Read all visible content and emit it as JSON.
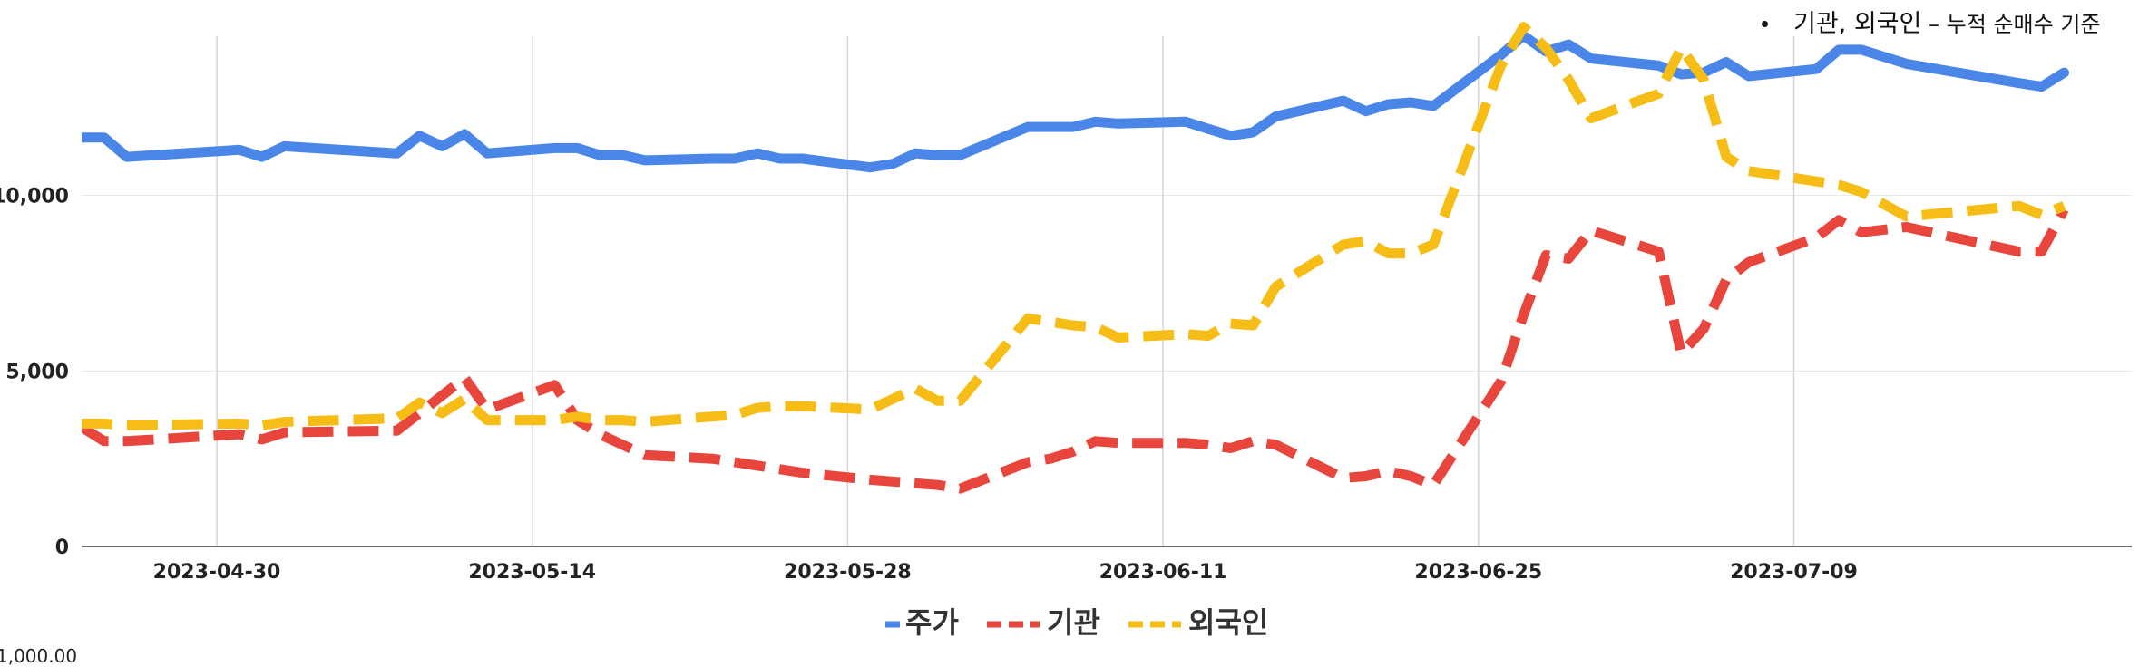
{
  "note": {
    "main": "기관, 외국인",
    "dash": "–",
    "detail": "누적 순매수 기준"
  },
  "bottom_stub": "1,000.00",
  "colors": {
    "price": "#4a86e8",
    "institution": "#e8453c",
    "foreign": "#f6bd16"
  },
  "chart_data": {
    "type": "line",
    "x_range": [
      "2023-04-24",
      "2023-07-24"
    ],
    "ylim": [
      0,
      15000
    ],
    "yticks": [
      0,
      5000,
      10000
    ],
    "ytick_labels": [
      "0",
      "5,000",
      "10,000"
    ],
    "xticks": [
      "2023-04-30",
      "2023-05-14",
      "2023-05-28",
      "2023-06-11",
      "2023-06-25",
      "2023-07-09"
    ],
    "grid": true,
    "legend_position": "bottom",
    "series": [
      {
        "name": "주가",
        "color": "#4a86e8",
        "style": "solid",
        "points": [
          [
            "2023-04-24",
            11650
          ],
          [
            "2023-04-25",
            11650
          ],
          [
            "2023-04-26",
            11100
          ],
          [
            "2023-05-01",
            11300
          ],
          [
            "2023-05-02",
            11100
          ],
          [
            "2023-05-03",
            11400
          ],
          [
            "2023-05-08",
            11200
          ],
          [
            "2023-05-09",
            11700
          ],
          [
            "2023-05-10",
            11400
          ],
          [
            "2023-05-11",
            11750
          ],
          [
            "2023-05-12",
            11200
          ],
          [
            "2023-05-15",
            11350
          ],
          [
            "2023-05-16",
            11350
          ],
          [
            "2023-05-17",
            11150
          ],
          [
            "2023-05-18",
            11150
          ],
          [
            "2023-05-19",
            11000
          ],
          [
            "2023-05-22",
            11050
          ],
          [
            "2023-05-23",
            11050
          ],
          [
            "2023-05-24",
            11200
          ],
          [
            "2023-05-25",
            11050
          ],
          [
            "2023-05-26",
            11050
          ],
          [
            "2023-05-29",
            10800
          ],
          [
            "2023-05-30",
            10900
          ],
          [
            "2023-05-31",
            11200
          ],
          [
            "2023-06-01",
            11150
          ],
          [
            "2023-06-02",
            11150
          ],
          [
            "2023-06-05",
            11950
          ],
          [
            "2023-06-06",
            11950
          ],
          [
            "2023-06-07",
            11950
          ],
          [
            "2023-06-08",
            12100
          ],
          [
            "2023-06-09",
            12050
          ],
          [
            "2023-06-12",
            12100
          ],
          [
            "2023-06-13",
            11900
          ],
          [
            "2023-06-14",
            11700
          ],
          [
            "2023-06-15",
            11800
          ],
          [
            "2023-06-16",
            12250
          ],
          [
            "2023-06-19",
            12700
          ],
          [
            "2023-06-20",
            12400
          ],
          [
            "2023-06-21",
            12600
          ],
          [
            "2023-06-22",
            12650
          ],
          [
            "2023-06-23",
            12550
          ],
          [
            "2023-06-26",
            14000
          ],
          [
            "2023-06-27",
            14550
          ],
          [
            "2023-06-28",
            14100
          ],
          [
            "2023-06-29",
            14300
          ],
          [
            "2023-06-30",
            13900
          ],
          [
            "2023-07-03",
            13700
          ],
          [
            "2023-07-04",
            13450
          ],
          [
            "2023-07-05",
            13500
          ],
          [
            "2023-07-06",
            13800
          ],
          [
            "2023-07-07",
            13400
          ],
          [
            "2023-07-10",
            13600
          ],
          [
            "2023-07-11",
            14150
          ],
          [
            "2023-07-12",
            14150
          ],
          [
            "2023-07-14",
            13750
          ],
          [
            "2023-07-19",
            13200
          ],
          [
            "2023-07-20",
            13100
          ],
          [
            "2023-07-21",
            13500
          ]
        ]
      },
      {
        "name": "기관",
        "color": "#e8453c",
        "style": "dashed",
        "points": [
          [
            "2023-04-24",
            3400
          ],
          [
            "2023-04-25",
            3000
          ],
          [
            "2023-04-26",
            3000
          ],
          [
            "2023-05-01",
            3200
          ],
          [
            "2023-05-02",
            3050
          ],
          [
            "2023-05-03",
            3250
          ],
          [
            "2023-05-08",
            3300
          ],
          [
            "2023-05-09",
            3800
          ],
          [
            "2023-05-10",
            4300
          ],
          [
            "2023-05-11",
            4800
          ],
          [
            "2023-05-12",
            3900
          ],
          [
            "2023-05-15",
            4600
          ],
          [
            "2023-05-16",
            3600
          ],
          [
            "2023-05-17",
            3200
          ],
          [
            "2023-05-18",
            2900
          ],
          [
            "2023-05-19",
            2600
          ],
          [
            "2023-05-22",
            2500
          ],
          [
            "2023-05-23",
            2400
          ],
          [
            "2023-05-24",
            2300
          ],
          [
            "2023-05-25",
            2200
          ],
          [
            "2023-05-26",
            2100
          ],
          [
            "2023-05-29",
            1900
          ],
          [
            "2023-05-30",
            1850
          ],
          [
            "2023-05-31",
            1800
          ],
          [
            "2023-06-01",
            1750
          ],
          [
            "2023-06-02",
            1650
          ],
          [
            "2023-06-05",
            2400
          ],
          [
            "2023-06-06",
            2500
          ],
          [
            "2023-06-07",
            2700
          ],
          [
            "2023-06-08",
            3000
          ],
          [
            "2023-06-09",
            2950
          ],
          [
            "2023-06-12",
            2950
          ],
          [
            "2023-06-13",
            2900
          ],
          [
            "2023-06-14",
            2800
          ],
          [
            "2023-06-15",
            3000
          ],
          [
            "2023-06-16",
            2900
          ],
          [
            "2023-06-19",
            1950
          ],
          [
            "2023-06-20",
            2000
          ],
          [
            "2023-06-21",
            2150
          ],
          [
            "2023-06-22",
            2000
          ],
          [
            "2023-06-23",
            1750
          ],
          [
            "2023-06-26",
            4700
          ],
          [
            "2023-06-27",
            6600
          ],
          [
            "2023-06-28",
            8300
          ],
          [
            "2023-06-29",
            8200
          ],
          [
            "2023-06-30",
            9000
          ],
          [
            "2023-07-03",
            8400
          ],
          [
            "2023-07-04",
            5500
          ],
          [
            "2023-07-05",
            6200
          ],
          [
            "2023-07-06",
            7600
          ],
          [
            "2023-07-07",
            8100
          ],
          [
            "2023-07-10",
            8800
          ],
          [
            "2023-07-11",
            9300
          ],
          [
            "2023-07-12",
            8950
          ],
          [
            "2023-07-14",
            9100
          ],
          [
            "2023-07-19",
            8400
          ],
          [
            "2023-07-20",
            8400
          ],
          [
            "2023-07-21",
            9600
          ]
        ]
      },
      {
        "name": "외국인",
        "color": "#f6bd16",
        "style": "dashed",
        "points": [
          [
            "2023-04-24",
            3500
          ],
          [
            "2023-04-25",
            3500
          ],
          [
            "2023-04-26",
            3450
          ],
          [
            "2023-05-01",
            3500
          ],
          [
            "2023-05-02",
            3450
          ],
          [
            "2023-05-03",
            3550
          ],
          [
            "2023-05-08",
            3650
          ],
          [
            "2023-05-09",
            4100
          ],
          [
            "2023-05-10",
            3800
          ],
          [
            "2023-05-11",
            4200
          ],
          [
            "2023-05-12",
            3600
          ],
          [
            "2023-05-15",
            3600
          ],
          [
            "2023-05-16",
            3700
          ],
          [
            "2023-05-17",
            3600
          ],
          [
            "2023-05-18",
            3600
          ],
          [
            "2023-05-19",
            3550
          ],
          [
            "2023-05-22",
            3700
          ],
          [
            "2023-05-23",
            3750
          ],
          [
            "2023-05-24",
            3950
          ],
          [
            "2023-05-25",
            4000
          ],
          [
            "2023-05-26",
            4000
          ],
          [
            "2023-05-29",
            3900
          ],
          [
            "2023-05-30",
            4200
          ],
          [
            "2023-05-31",
            4500
          ],
          [
            "2023-06-01",
            4150
          ],
          [
            "2023-06-02",
            4150
          ],
          [
            "2023-06-05",
            6500
          ],
          [
            "2023-06-06",
            6400
          ],
          [
            "2023-06-07",
            6300
          ],
          [
            "2023-06-08",
            6250
          ],
          [
            "2023-06-09",
            5950
          ],
          [
            "2023-06-12",
            6050
          ],
          [
            "2023-06-13",
            6000
          ],
          [
            "2023-06-14",
            6350
          ],
          [
            "2023-06-15",
            6300
          ],
          [
            "2023-06-16",
            7400
          ],
          [
            "2023-06-19",
            8600
          ],
          [
            "2023-06-20",
            8700
          ],
          [
            "2023-06-21",
            8350
          ],
          [
            "2023-06-22",
            8350
          ],
          [
            "2023-06-23",
            8600
          ],
          [
            "2023-06-26",
            13700
          ],
          [
            "2023-06-27",
            14800
          ],
          [
            "2023-06-28",
            14200
          ],
          [
            "2023-06-29",
            13300
          ],
          [
            "2023-06-30",
            12200
          ],
          [
            "2023-07-03",
            12900
          ],
          [
            "2023-07-04",
            14200
          ],
          [
            "2023-07-05",
            13300
          ],
          [
            "2023-07-06",
            11100
          ],
          [
            "2023-07-07",
            10700
          ],
          [
            "2023-07-10",
            10400
          ],
          [
            "2023-07-11",
            10300
          ],
          [
            "2023-07-12",
            10100
          ],
          [
            "2023-07-14",
            9400
          ],
          [
            "2023-07-19",
            9700
          ],
          [
            "2023-07-20",
            9450
          ],
          [
            "2023-07-21",
            9700
          ]
        ]
      }
    ]
  }
}
